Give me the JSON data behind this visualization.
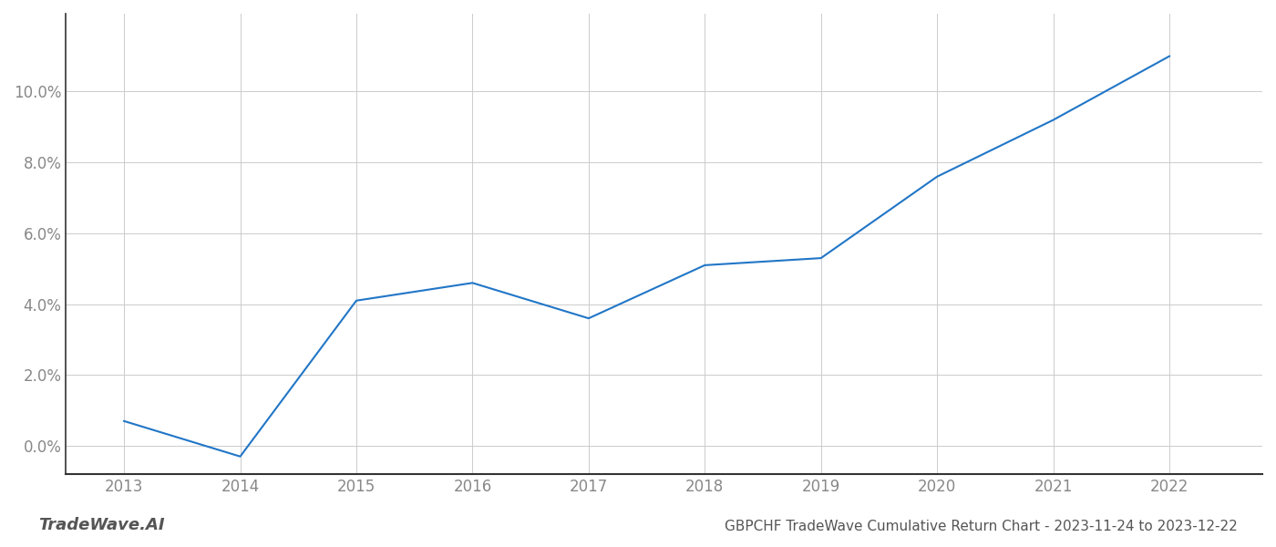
{
  "x": [
    2013,
    2014,
    2015,
    2016,
    2017,
    2018,
    2019,
    2020,
    2021,
    2022
  ],
  "y": [
    0.007,
    -0.003,
    0.041,
    0.046,
    0.036,
    0.051,
    0.053,
    0.076,
    0.092,
    0.11
  ],
  "line_color": "#2176c7",
  "line_width": 1.5,
  "title": "GBPCHF TradeWave Cumulative Return Chart - 2023-11-24 to 2023-12-22",
  "watermark": "TradeWave.AI",
  "background_color": "#ffffff",
  "grid_color": "#cccccc",
  "xlim": [
    2012.5,
    2022.8
  ],
  "ylim": [
    -0.008,
    0.122
  ],
  "yticks": [
    0.0,
    0.02,
    0.04,
    0.06,
    0.08,
    0.1
  ],
  "xticks": [
    2013,
    2014,
    2015,
    2016,
    2017,
    2018,
    2019,
    2020,
    2021,
    2022
  ],
  "tick_label_color": "#888888",
  "title_color": "#555555",
  "watermark_color": "#555555",
  "title_fontsize": 11,
  "tick_fontsize": 12,
  "watermark_fontsize": 13
}
